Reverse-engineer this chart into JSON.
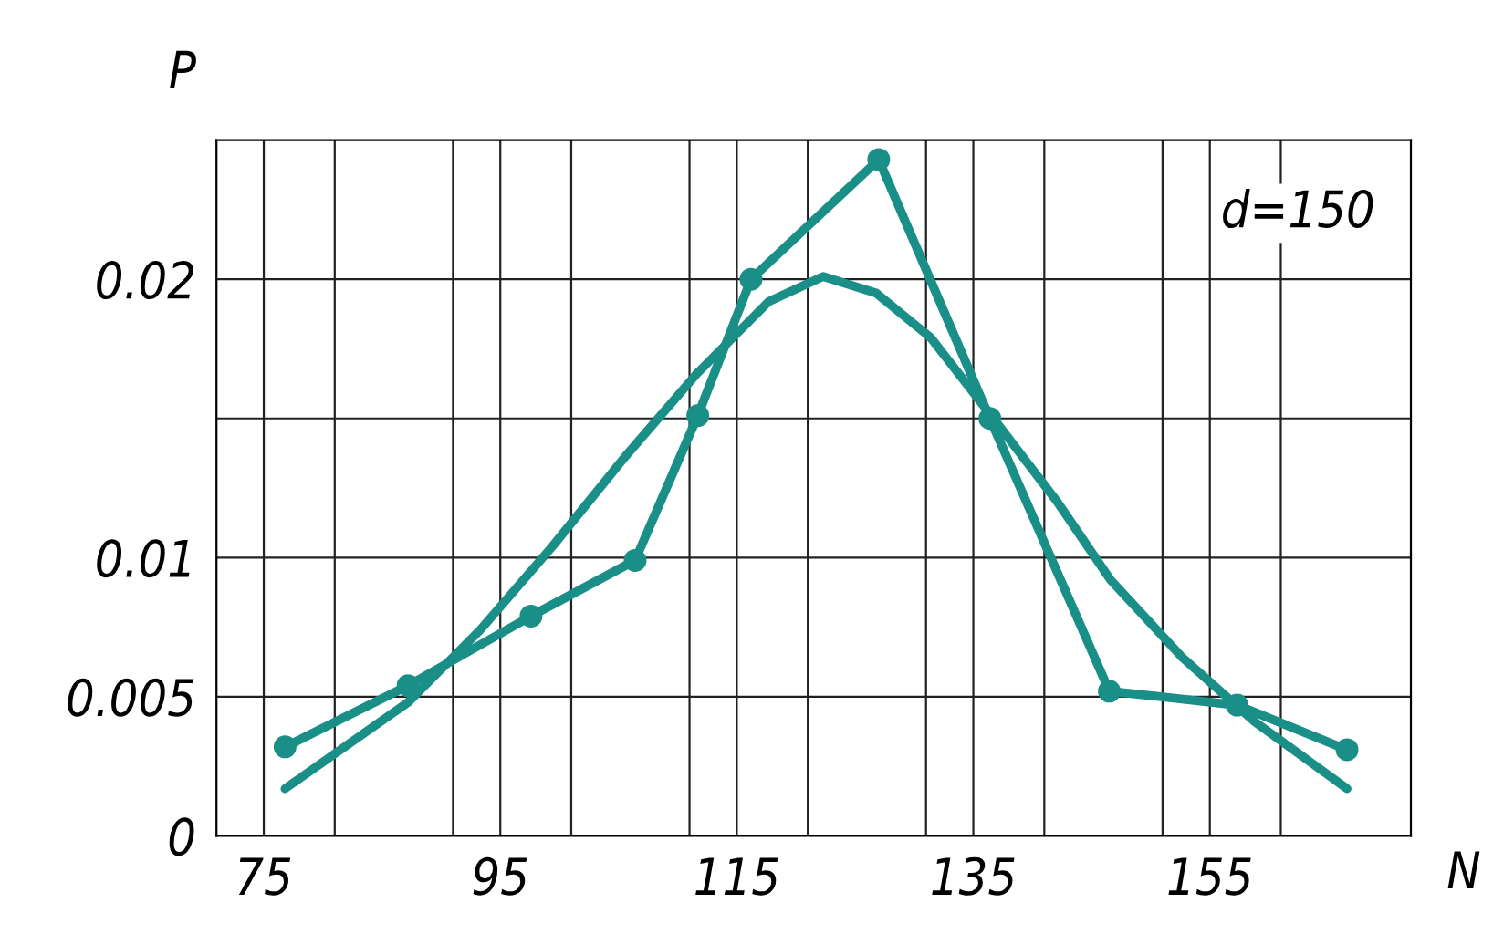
{
  "chart_data": {
    "type": "line",
    "xlabel": "N",
    "ylabel": "P",
    "annotations": [
      "d=150"
    ],
    "xlim": [
      71,
      172
    ],
    "xticks": [
      {
        "value": 75,
        "label": "75"
      },
      {
        "value": 95,
        "label": "95"
      },
      {
        "value": 115,
        "label": "115"
      },
      {
        "value": 135,
        "label": "135"
      },
      {
        "value": 155,
        "label": "155"
      },
      {
        "value": 81,
        "label": null
      },
      {
        "value": 91,
        "label": null
      },
      {
        "value": 101,
        "label": null
      },
      {
        "value": 111,
        "label": null
      },
      {
        "value": 121,
        "label": null
      },
      {
        "value": 131,
        "label": null
      },
      {
        "value": 141,
        "label": null
      },
      {
        "value": 151,
        "label": null
      },
      {
        "value": 161,
        "label": null
      }
    ],
    "ylim": [
      0,
      0.025
    ],
    "yticks": [
      0,
      0.005,
      0.01,
      {
        "value": 0.015,
        "label": null
      },
      0.02
    ],
    "grid": true,
    "legend": false,
    "line_style": "solid",
    "series": [
      {
        "color": "#1a8f88",
        "marker": "circle",
        "x": [
          76.8,
          87.2,
          97.6,
          106.4,
          111.7,
          116.2,
          127,
          136.4,
          146.5,
          157.3,
          166.6
        ],
        "values": [
          0.0032,
          0.0054,
          0.0079,
          0.0099,
          0.0151,
          0.02,
          0.0243,
          0.015,
          0.0052,
          0.0047,
          0.0031
        ]
      },
      {
        "color": "#1a8f88",
        "marker": "none",
        "x": [
          76.8,
          87.2,
          93.3,
          99.4,
          105.5,
          111.6,
          117.7,
          122.3,
          126.8,
          131.4,
          136.7,
          142.1,
          146.6,
          152.7,
          158.8,
          166.6
        ],
        "values": [
          0.0017,
          0.0048,
          0.0074,
          0.0104,
          0.0136,
          0.0166,
          0.0192,
          0.0201,
          0.0195,
          0.0179,
          0.015,
          0.012,
          0.0092,
          0.0064,
          0.0041,
          0.0017
        ]
      }
    ]
  }
}
